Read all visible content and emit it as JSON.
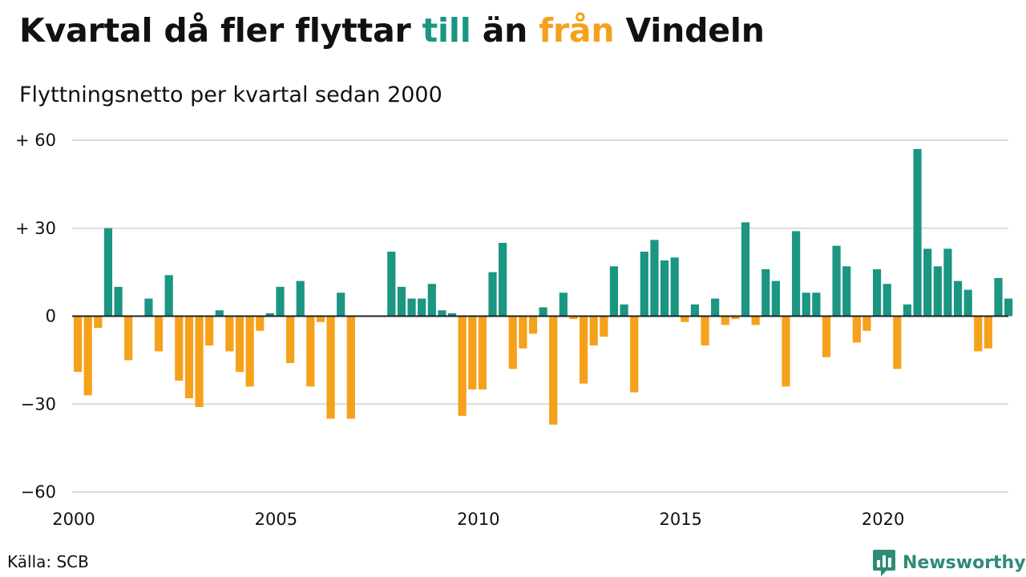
{
  "header": {
    "title_part1": "Kvartal då fler flyttar",
    "title_till": "till",
    "title_part2": "än",
    "title_fran": "från",
    "title_part3": "Vindeln",
    "subtitle": "Flyttningsnetto per kvartal sedan 2000"
  },
  "footer": {
    "source": "Källa: SCB",
    "brand": "Newsworthy"
  },
  "colors": {
    "positive": "#1a9682",
    "negative": "#f6a11c",
    "grid": "#dcdcdc",
    "brand": "#2e8b78"
  },
  "chart_data": {
    "type": "bar",
    "x_start": "2000 Q1",
    "xlabel": "",
    "ylabel": "",
    "ylim": [
      -60,
      60
    ],
    "y_ticks": [
      {
        "value": 60,
        "label": "+ 60"
      },
      {
        "value": 30,
        "label": "+ 30"
      },
      {
        "value": 0,
        "label": "0"
      },
      {
        "value": -30,
        "label": "−30"
      },
      {
        "value": -60,
        "label": "−60"
      }
    ],
    "x_ticks": [
      {
        "year": 2000,
        "label": "2000"
      },
      {
        "year": 2005,
        "label": "2005"
      },
      {
        "year": 2010,
        "label": "2010"
      },
      {
        "year": 2015,
        "label": "2015"
      },
      {
        "year": 2020,
        "label": "2020"
      }
    ],
    "grid": true,
    "legend": "none",
    "values": [
      -19,
      -27,
      -4,
      30,
      10,
      -15,
      0,
      6,
      -12,
      14,
      -22,
      -28,
      -31,
      -10,
      2,
      -12,
      -19,
      -24,
      -5,
      1,
      10,
      -16,
      12,
      -24,
      -2,
      -35,
      8,
      -35,
      0,
      0,
      0,
      22,
      10,
      6,
      6,
      11,
      2,
      1,
      -34,
      -25,
      -25,
      15,
      25,
      -18,
      -11,
      -6,
      3,
      -37,
      8,
      -1,
      -23,
      -10,
      -7,
      17,
      4,
      -26,
      22,
      26,
      19,
      20,
      -2,
      4,
      -10,
      6,
      -3,
      -1,
      32,
      -3,
      16,
      12,
      -24,
      29,
      8,
      8,
      -14,
      24,
      17,
      -9,
      -5,
      16,
      11,
      -18,
      4,
      57,
      23,
      17,
      23,
      12,
      9,
      -12,
      -11,
      13,
      6
    ]
  }
}
